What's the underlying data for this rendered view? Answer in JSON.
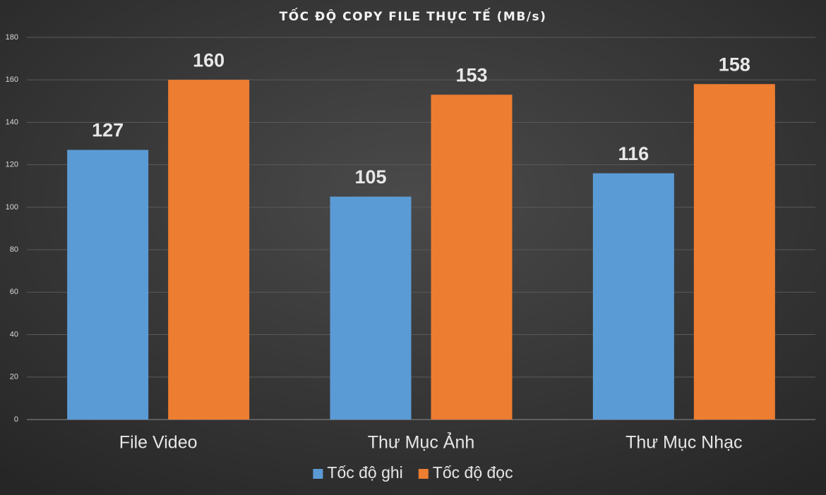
{
  "chart_data": {
    "type": "bar",
    "title": "TỐC ĐỘ COPY FILE THỰC TẾ (MB/s)",
    "categories": [
      "File Video",
      "Thư Mục Ảnh",
      "Thư Mục Nhạc"
    ],
    "series": [
      {
        "name": "Tốc độ ghi",
        "color": "#5b9bd5",
        "values": [
          127,
          105,
          116
        ]
      },
      {
        "name": "Tốc độ đọc",
        "color": "#ed7d31",
        "values": [
          160,
          153,
          158
        ]
      }
    ],
    "ylim": [
      0,
      180
    ],
    "yticks": [
      0,
      20,
      40,
      60,
      80,
      100,
      120,
      140,
      160,
      180
    ],
    "grid": true,
    "legend": "bottom"
  }
}
